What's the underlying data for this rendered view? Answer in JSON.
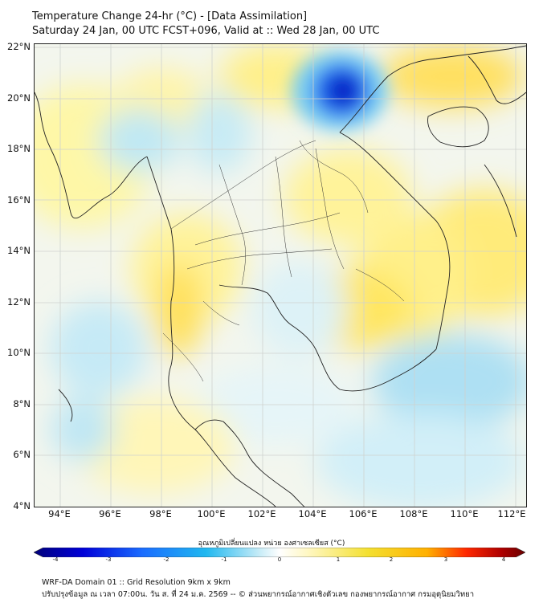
{
  "title": {
    "line1": "Temperature Change 24-hr (°C) - [Data Assimilation]",
    "line2": "Saturday 24 Jan, 00 UTC FCST+096, Valid at :: Wed 28 Jan, 00 UTC"
  },
  "axes": {
    "lat_labels": [
      "22°N",
      "20°N",
      "18°N",
      "16°N",
      "14°N",
      "12°N",
      "10°N",
      "8°N",
      "6°N",
      "4°N"
    ],
    "lon_labels": [
      "94°E",
      "96°E",
      "98°E",
      "100°E",
      "102°E",
      "104°E",
      "106°E",
      "108°E",
      "110°E",
      "112°E"
    ],
    "lat_range": [
      4,
      22.2
    ],
    "lon_range": [
      93,
      112.3
    ]
  },
  "colorbar": {
    "title": "อุณหภูมิเปลี่ยนแปลง หน่วย องศาเซลเซียส (°C)",
    "ticks": [
      "-4",
      "-3",
      "-2",
      "-1",
      "0",
      "1",
      "2",
      "3",
      "4"
    ],
    "range": [
      -4,
      4
    ],
    "colors": [
      "#00007a",
      "#0000d8",
      "#1a6cff",
      "#20b8f0",
      "#c8ecf7",
      "#ffffff",
      "#fff7c0",
      "#f4e030",
      "#ffb000",
      "#ff2800",
      "#b00000",
      "#6a0000"
    ]
  },
  "footer": {
    "line1": "WRF-DA Domain 01 :: Grid Resolution 9km x 9km",
    "line2": "ปรับปรุงข้อมูล ณ เวลา 07:00น. วัน ส. ที่ 24 ม.ค. 2569 -- © ส่วนพยากรณ์อากาศเชิงตัวเลข กองพยากรณ์อากาศ กรมอุตุนิยมวิทยา"
  }
}
